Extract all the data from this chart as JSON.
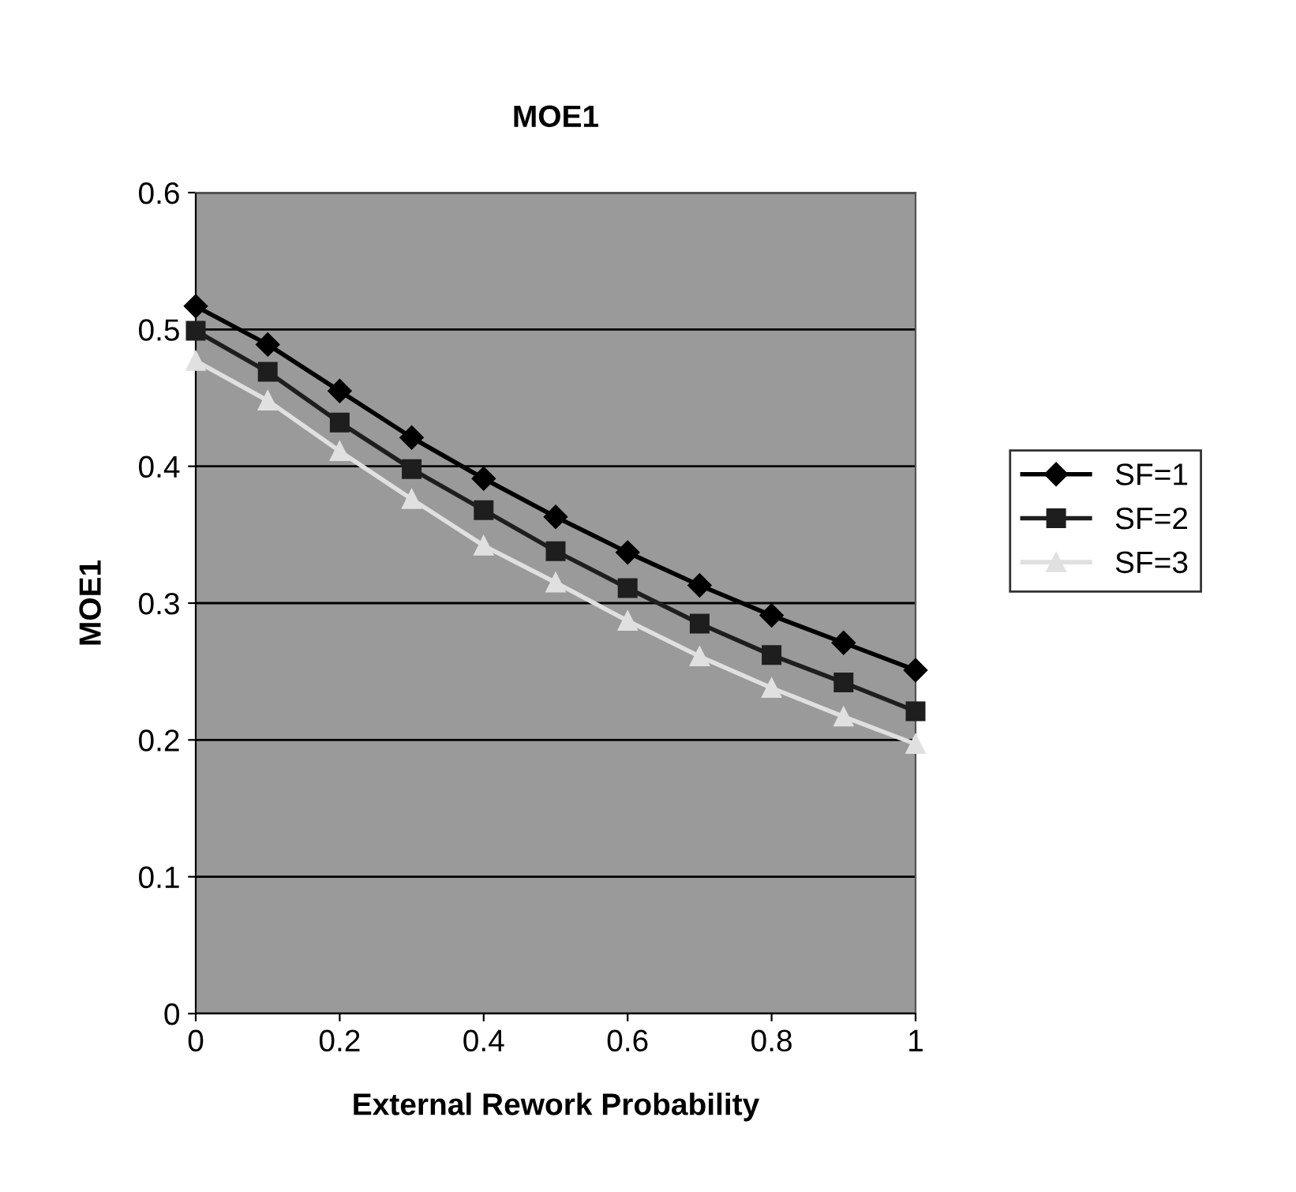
{
  "chart_data": {
    "type": "line",
    "title": "MOE1",
    "xlabel": "External Rework Probability",
    "ylabel": "MOE1",
    "x": [
      0,
      0.1,
      0.2,
      0.3,
      0.4,
      0.5,
      0.6,
      0.7,
      0.8,
      0.9,
      1
    ],
    "series": [
      {
        "name": "SF=1",
        "color": "#000000",
        "marker": "diamond",
        "values": [
          0.517,
          0.489,
          0.455,
          0.421,
          0.391,
          0.363,
          0.337,
          0.313,
          0.291,
          0.271,
          0.251
        ]
      },
      {
        "name": "SF=2",
        "color": "#1e1e1e",
        "marker": "square",
        "values": [
          0.499,
          0.469,
          0.432,
          0.398,
          0.368,
          0.338,
          0.311,
          0.285,
          0.262,
          0.242,
          0.221
        ]
      },
      {
        "name": "SF=3",
        "color": "#e0e0e0",
        "marker": "triangle",
        "values": [
          0.477,
          0.448,
          0.411,
          0.376,
          0.342,
          0.315,
          0.287,
          0.261,
          0.238,
          0.217,
          0.197
        ]
      }
    ],
    "xlim": [
      0,
      1
    ],
    "xticks": [
      0,
      0.2,
      0.4,
      0.6,
      0.8,
      1
    ],
    "ylim": [
      0,
      0.6
    ],
    "yticks": [
      0,
      0.1,
      0.2,
      0.3,
      0.4,
      0.5,
      0.6
    ],
    "grid": "y",
    "legend": "right",
    "line_style": "solid"
  }
}
